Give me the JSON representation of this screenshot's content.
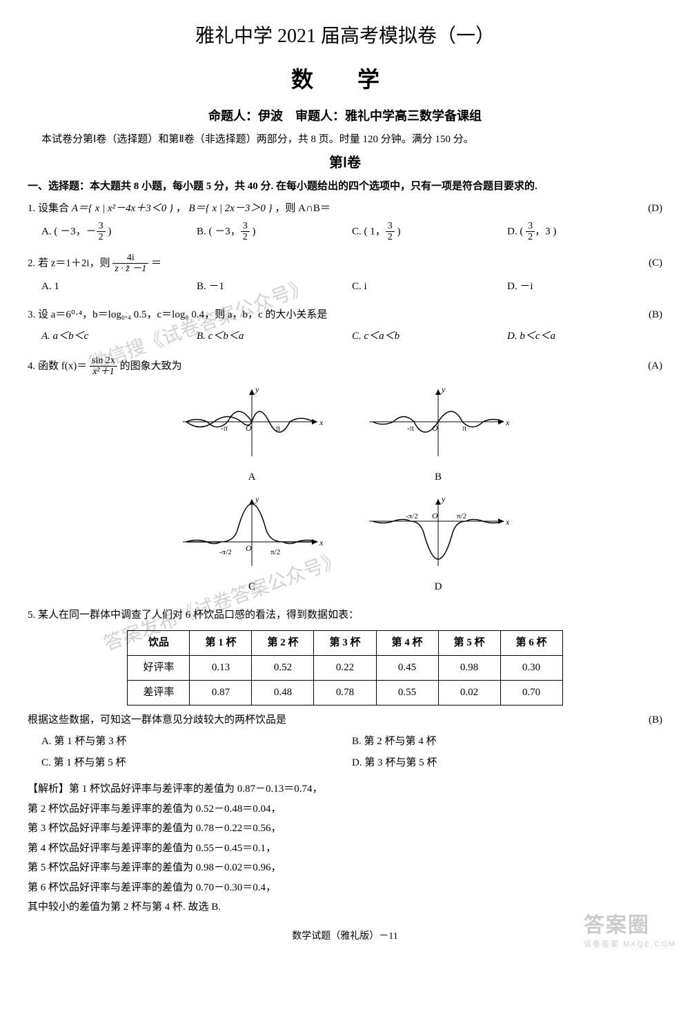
{
  "header": {
    "main_title": "雅礼中学 2021 届高考模拟卷（一）",
    "subject": "数 学",
    "authors": "命题人：伊波　审题人：雅礼中学高三数学备课组",
    "instructions": "本试卷分第Ⅰ卷（选择题）和第Ⅱ卷（非选择题）两部分，共 8 页。时量 120 分钟。满分 150 分。",
    "part_title": "第Ⅰ卷"
  },
  "section1_heading": "一、选择题：本大题共 8 小题，每小题 5 分，共 40 分. 在每小题给出的四个选项中，只有一项是符合题目要求的.",
  "q1": {
    "text_prefix": "1. 设集合 ",
    "set_a": "A＝{ x | x²－4x＋3＜0 }",
    "sep_ab": "，",
    "set_b": "B＝{ x | 2x－3＞0 }",
    "text_suffix": "，则 A∩B＝",
    "answer": "(D)",
    "opt_a_pre": "A. ( －3，－",
    "opt_a_f_num": "3",
    "opt_a_f_den": "2",
    "opt_a_post": " )",
    "opt_b_pre": "B. ( －3，",
    "opt_b_f_num": "3",
    "opt_b_f_den": "2",
    "opt_b_post": " )",
    "opt_c_pre": "C. ( 1，",
    "opt_c_f_num": "3",
    "opt_c_f_den": "2",
    "opt_c_post": " )",
    "opt_d_pre": "D. ( ",
    "opt_d_f_num": "3",
    "opt_d_f_den": "2",
    "opt_d_post": "，3 )"
  },
  "q2": {
    "text_prefix": "2. 若 z＝1＋2i，则 ",
    "frac_num": "4i",
    "frac_den": "z · z̄ －1",
    "text_suffix": " ＝",
    "answer": "(C)",
    "opt_a": "A. 1",
    "opt_b": "B. －1",
    "opt_c": "C. i",
    "opt_d": "D. －i"
  },
  "q3": {
    "text": "3. 设 a＝6⁰·⁴，b＝log₀.₄ 0.5，c＝log₈ 0.4，则 a，b，c 的大小关系是",
    "answer": "(B)",
    "opt_a": "A. a＜b＜c",
    "opt_b": "B. c＜b＜a",
    "opt_c": "C. c＜a＜b",
    "opt_d": "D. b＜c＜a"
  },
  "q4": {
    "text_prefix": "4. 函数 f(x)＝",
    "frac_num": "sin 2x",
    "frac_den": "x²＋1",
    "text_suffix": " 的图象大致为",
    "answer": "(A)",
    "chart_a": {
      "label": "A",
      "type": "function-plot",
      "xlabel": "x",
      "ylabel": "y",
      "x_marks": [
        "-π",
        "π"
      ],
      "axis_color": "#000",
      "curve_color": "#000",
      "background": "#fff",
      "xlim": [
        -5.5,
        5.5
      ],
      "ylim": [
        -0.9,
        0.9
      ],
      "shape": "odd-damped-sine-pos-first"
    },
    "chart_b": {
      "label": "B",
      "type": "function-plot",
      "xlabel": "x",
      "ylabel": "y",
      "x_marks": [
        "-π",
        "π"
      ],
      "axis_color": "#000",
      "curve_color": "#000",
      "background": "#fff",
      "xlim": [
        -5.5,
        5.5
      ],
      "ylim": [
        -0.9,
        0.9
      ],
      "shape": "odd-damped-sine-neg-first"
    },
    "chart_c": {
      "label": "C",
      "type": "function-plot",
      "xlabel": "x",
      "ylabel": "y",
      "x_marks": [
        "-π/2",
        "π/2"
      ],
      "axis_color": "#000",
      "curve_color": "#000",
      "background": "#fff",
      "xlim": [
        -4.5,
        4.5
      ],
      "ylim": [
        -0.9,
        0.9
      ],
      "shape": "even-bump-up"
    },
    "chart_d": {
      "label": "D",
      "type": "function-plot",
      "xlabel": "x",
      "ylabel": "y",
      "x_marks": [
        "-π/2",
        "π/2"
      ],
      "axis_color": "#000",
      "curve_color": "#000",
      "background": "#fff",
      "xlim": [
        -4.5,
        4.5
      ],
      "ylim": [
        -0.9,
        0.9
      ],
      "shape": "even-bump-down"
    }
  },
  "q5": {
    "text": "5. 某人在同一群体中调查了人们对 6 杯饮品口感的看法，得到数据如表：",
    "table": {
      "columns": [
        "饮品",
        "第 1 杯",
        "第 2 杯",
        "第 3 杯",
        "第 4 杯",
        "第 5 杯",
        "第 6 杯"
      ],
      "rows": [
        [
          "好评率",
          "0.13",
          "0.52",
          "0.22",
          "0.45",
          "0.98",
          "0.30"
        ],
        [
          "差评率",
          "0.87",
          "0.48",
          "0.78",
          "0.55",
          "0.02",
          "0.70"
        ]
      ],
      "border_color": "#000",
      "cell_padding": 6,
      "header_bg": "#fff",
      "font_size": 15
    },
    "followup": "根据这些数据，可知这一群体意见分歧较大的两杯饮品是",
    "answer": "(B)",
    "opt_a": "A. 第 1 杯与第 3 杯",
    "opt_b": "B. 第 2 杯与第 4 杯",
    "opt_c": "C. 第 1 杯与第 5 杯",
    "opt_d": "D. 第 3 杯与第 5 杯",
    "explanation": {
      "line0": "【解析】第 1 杯饮品好评率与差评率的差值为 0.87－0.13＝0.74，",
      "line1": "第 2 杯饮品好评率与差评率的差值为 0.52－0.48＝0.04，",
      "line2": "第 3 杯饮品好评率与差评率的差值为 0.78－0.22＝0.56，",
      "line3": "第 4 杯饮品好评率与差评率的差值为 0.55－0.45＝0.1，",
      "line4": "第 5 杯饮品好评率与差评率的差值为 0.98－0.02＝0.96，",
      "line5": "第 6 杯饮品好评率与差评率的差值为 0.70－0.30＝0.4，",
      "line6": "其中较小的差值为第 2 杯与第 4 杯. 故选 B."
    }
  },
  "footer": "数学试题（雅礼版）－11",
  "watermarks": {
    "w1": "微信搜《试卷答案公众号》",
    "w2": "答案发布《试卷答案公众号》",
    "br1": "答案圈",
    "br2": "试卷答案  MXQE.COM"
  },
  "colors": {
    "text": "#000000",
    "bg": "#ffffff",
    "watermark": "rgba(0,0,0,0.18)"
  }
}
